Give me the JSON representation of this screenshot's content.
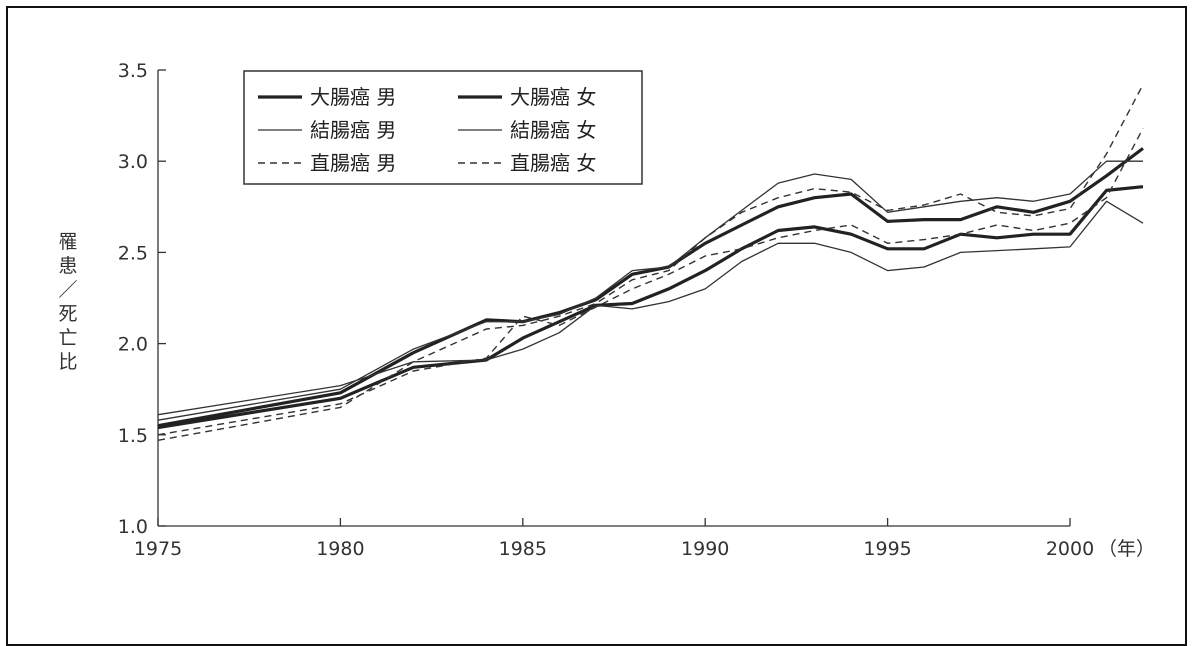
{
  "chart_data": {
    "type": "line",
    "title": "",
    "ylabel": "罹患／死亡比",
    "xlabel": "",
    "x_unit": "（年）",
    "xlim": [
      1975,
      2003
    ],
    "ylim": [
      1.0,
      3.5
    ],
    "x_ticks": [
      "1975",
      "1980",
      "1985",
      "1990",
      "1995",
      "2000"
    ],
    "y_ticks": [
      "1.0",
      "1.5",
      "2.0",
      "2.5",
      "3.0",
      "3.5"
    ],
    "grid": false,
    "legend_position": "top-left",
    "series": [
      {
        "name": "大腸癌 男",
        "style": "thick",
        "x": [
          1975,
          1980,
          1982,
          1984,
          1985,
          1986,
          1987,
          1988,
          1989,
          1990,
          1991,
          1992,
          1993,
          1994,
          1995,
          1996,
          1997,
          1998,
          1999,
          2000,
          2001,
          2002
        ],
        "y": [
          1.55,
          1.73,
          1.95,
          2.13,
          2.12,
          2.17,
          2.24,
          2.38,
          2.42,
          2.55,
          2.65,
          2.75,
          2.8,
          2.82,
          2.67,
          2.68,
          2.68,
          2.75,
          2.72,
          2.78,
          2.92,
          3.07
        ]
      },
      {
        "name": "大腸癌 女",
        "style": "thick",
        "x": [
          1975,
          1980,
          1982,
          1984,
          1985,
          1986,
          1987,
          1988,
          1989,
          1990,
          1991,
          1992,
          1993,
          1994,
          1995,
          1996,
          1997,
          1998,
          1999,
          2000,
          2001,
          2002
        ],
        "y": [
          1.54,
          1.7,
          1.87,
          1.91,
          2.03,
          2.12,
          2.21,
          2.22,
          2.3,
          2.4,
          2.52,
          2.62,
          2.64,
          2.6,
          2.52,
          2.52,
          2.6,
          2.58,
          2.6,
          2.6,
          2.84,
          2.86
        ]
      },
      {
        "name": "結腸癌 男",
        "style": "thin",
        "x": [
          1975,
          1980,
          1982,
          1984,
          1985,
          1986,
          1987,
          1988,
          1989,
          1990,
          1991,
          1992,
          1993,
          1994,
          1995,
          1996,
          1997,
          1998,
          1999,
          2000,
          2001,
          2002
        ],
        "y": [
          1.58,
          1.75,
          1.97,
          2.12,
          2.12,
          2.16,
          2.25,
          2.4,
          2.42,
          2.58,
          2.73,
          2.88,
          2.93,
          2.9,
          2.72,
          2.75,
          2.78,
          2.8,
          2.78,
          2.82,
          3.0,
          3.0
        ]
      },
      {
        "name": "結腸癌 女",
        "style": "thin",
        "x": [
          1975,
          1980,
          1982,
          1984,
          1985,
          1986,
          1987,
          1988,
          1989,
          1990,
          1991,
          1992,
          1993,
          1994,
          1995,
          1996,
          1997,
          1998,
          1999,
          2000,
          2001,
          2002
        ],
        "y": [
          1.61,
          1.77,
          1.9,
          1.91,
          1.97,
          2.06,
          2.21,
          2.19,
          2.23,
          2.3,
          2.45,
          2.55,
          2.55,
          2.5,
          2.4,
          2.42,
          2.5,
          2.51,
          2.52,
          2.53,
          2.78,
          2.66
        ]
      },
      {
        "name": "直腸癌 男",
        "style": "dashed",
        "x": [
          1975,
          1980,
          1982,
          1984,
          1985,
          1986,
          1987,
          1988,
          1989,
          1990,
          1991,
          1992,
          1993,
          1994,
          1995,
          1996,
          1997,
          1998,
          1999,
          2000,
          2001,
          2002
        ],
        "y": [
          1.47,
          1.65,
          1.9,
          2.08,
          2.1,
          2.15,
          2.22,
          2.35,
          2.4,
          2.58,
          2.72,
          2.8,
          2.85,
          2.83,
          2.73,
          2.76,
          2.82,
          2.72,
          2.7,
          2.74,
          3.04,
          3.42
        ]
      },
      {
        "name": "直腸癌 女",
        "style": "dashed",
        "x": [
          1975,
          1980,
          1982,
          1984,
          1985,
          1986,
          1987,
          1988,
          1989,
          1990,
          1991,
          1992,
          1993,
          1994,
          1995,
          1996,
          1997,
          1998,
          1999,
          2000,
          2001,
          2002
        ],
        "y": [
          1.5,
          1.67,
          1.85,
          1.92,
          2.15,
          2.1,
          2.2,
          2.3,
          2.38,
          2.48,
          2.52,
          2.58,
          2.62,
          2.65,
          2.55,
          2.57,
          2.6,
          2.65,
          2.62,
          2.66,
          2.8,
          3.18
        ]
      }
    ]
  }
}
